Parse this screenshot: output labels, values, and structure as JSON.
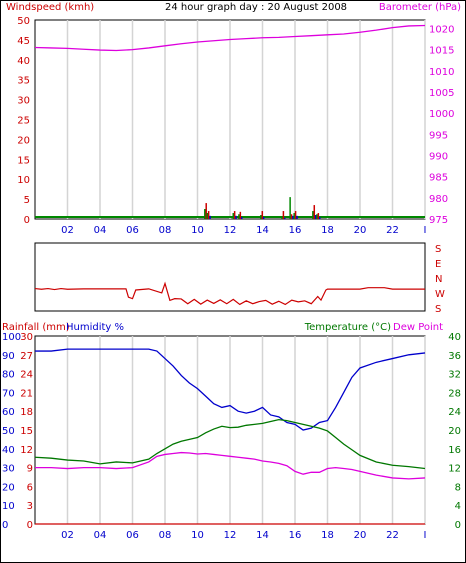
{
  "title": "24 hour graph day : 20 August 2008",
  "colors": {
    "windspeed": "#cc0000",
    "barometer": "#dd00dd",
    "gust": "#cc0000",
    "wind_green": "#008800",
    "wind_blue": "#0000cc",
    "direction": "#cc0000",
    "humidity": "#0000cc",
    "temperature": "#007700",
    "dewpoint": "#dd00dd",
    "rainfall": "#cc0000",
    "axis_red": "#cc0000",
    "axis_blue": "#0000cc",
    "axis_green": "#007700",
    "grid": "#d4d4d4"
  },
  "chart_data": [
    {
      "type": "line",
      "name": "wind_barometer",
      "labels": {
        "left": "Windspeed (kmh)",
        "right": "Barometer (hPa)"
      },
      "x_ticks": [
        "02",
        "04",
        "06",
        "08",
        "10",
        "12",
        "14",
        "16",
        "18",
        "20",
        "22",
        "I"
      ],
      "left_ticks": [
        "0",
        "5",
        "10",
        "15",
        "20",
        "25",
        "30",
        "35",
        "40",
        "45",
        "50"
      ],
      "right_ticks": [
        "975",
        "980",
        "985",
        "990",
        "995",
        "1000",
        "1005",
        "1010",
        "1015",
        "1020"
      ],
      "ylim_left": [
        0,
        50
      ],
      "ylim_right": [
        975,
        1022
      ],
      "grid": true,
      "series": [
        {
          "name": "Barometer (hPa)",
          "axis": "right",
          "x": [
            0,
            1,
            2,
            3,
            4,
            5,
            6,
            7,
            8,
            9,
            10,
            11,
            12,
            13,
            14,
            15,
            16,
            17,
            18,
            19,
            20,
            21,
            22,
            23,
            24
          ],
          "values": [
            1015.5,
            1015.4,
            1015.3,
            1015.1,
            1014.9,
            1014.8,
            1015.0,
            1015.4,
            1015.9,
            1016.4,
            1016.8,
            1017.1,
            1017.4,
            1017.6,
            1017.8,
            1017.9,
            1018.1,
            1018.3,
            1018.5,
            1018.7,
            1019.1,
            1019.6,
            1020.2,
            1020.6,
            1020.7
          ]
        }
      ],
      "wind_bars": [
        {
          "x": 10.45,
          "values": [
            2.5,
            4.0,
            1.5
          ]
        },
        {
          "x": 10.6,
          "values": [
            1.5,
            2.0,
            0.8
          ]
        },
        {
          "x": 12.2,
          "values": [
            1.5,
            2.0,
            0.8
          ]
        },
        {
          "x": 12.55,
          "values": [
            1.2,
            1.8,
            0.5
          ]
        },
        {
          "x": 13.9,
          "values": [
            1.0,
            2.0,
            0.5
          ]
        },
        {
          "x": 15.2,
          "values": [
            0.5,
            2.0,
            0.3
          ]
        },
        {
          "x": 15.7,
          "values": [
            5.5,
            1.2,
            0.8
          ]
        },
        {
          "x": 15.95,
          "values": [
            1.5,
            2.0,
            0.8
          ]
        },
        {
          "x": 17.1,
          "values": [
            2.0,
            3.5,
            1.0
          ]
        },
        {
          "x": 17.35,
          "values": [
            1.2,
            1.5,
            0.5
          ]
        }
      ]
    },
    {
      "type": "line",
      "name": "wind_direction",
      "right_labels": [
        "S",
        "E",
        "N",
        "W",
        "S"
      ],
      "ylim": [
        0,
        360
      ],
      "series": [
        {
          "name": "Direction",
          "x": [
            0,
            0.4,
            0.8,
            1.2,
            1.6,
            2.0,
            3.0,
            4.0,
            5.0,
            5.6,
            5.75,
            6.0,
            6.2,
            7.0,
            7.8,
            8.0,
            8.3,
            8.6,
            9.0,
            9.4,
            9.8,
            10.2,
            10.6,
            11.0,
            11.4,
            11.8,
            12.2,
            12.6,
            13.0,
            13.4,
            13.8,
            14.2,
            14.6,
            15.0,
            15.4,
            15.8,
            16.2,
            16.6,
            17.0,
            17.4,
            17.6,
            17.9,
            18.0,
            19.0,
            20.0,
            20.5,
            21.5,
            22.0,
            23.0,
            24.0
          ],
          "values": [
            100,
            95,
            100,
            93,
            100,
            95,
            98,
            98,
            98,
            98,
            40,
            30,
            90,
            98,
            70,
            135,
            18,
            30,
            28,
            -5,
            25,
            -8,
            20,
            -3,
            22,
            -5,
            25,
            -10,
            15,
            -5,
            10,
            18,
            -8,
            12,
            -10,
            20,
            8,
            15,
            -5,
            45,
            20,
            90,
            96,
            96,
            96,
            106,
            106,
            96,
            96,
            96
          ]
        }
      ]
    },
    {
      "type": "line",
      "name": "humidity_temperature",
      "labels": {
        "left": [
          "Rainfall (mm)",
          "Humidity %"
        ],
        "right": [
          "Temperature (°C)",
          "Dew Point"
        ]
      },
      "x_ticks": [
        "02",
        "04",
        "06",
        "08",
        "10",
        "12",
        "14",
        "16",
        "18",
        "20",
        "22",
        "I"
      ],
      "humidity_ticks": [
        "0",
        "10",
        "20",
        "30",
        "40",
        "50",
        "60",
        "70",
        "80",
        "90",
        "100"
      ],
      "rain_ticks": [
        "0",
        "3",
        "6",
        "9",
        "12",
        "15",
        "18",
        "21",
        "24",
        "27",
        "30"
      ],
      "temp_ticks": [
        "0",
        "4",
        "8",
        "12",
        "16",
        "20",
        "24",
        "28",
        "32",
        "36",
        "40"
      ],
      "ylim_humidity": [
        0,
        100
      ],
      "ylim_temp": [
        0,
        40
      ],
      "grid": true,
      "series": [
        {
          "name": "Humidity %",
          "axis": "humidity",
          "x": [
            0,
            1,
            2,
            3,
            4,
            5,
            6,
            7,
            7.5,
            8,
            8.5,
            9,
            9.5,
            10,
            10.5,
            11,
            11.5,
            12,
            12.5,
            13,
            13.5,
            14,
            14.5,
            15,
            15.5,
            16,
            16.5,
            17,
            17.5,
            18,
            18.5,
            19,
            19.5,
            20,
            21,
            22,
            23,
            24
          ],
          "values": [
            92,
            92,
            93,
            93,
            93,
            93,
            93,
            93,
            92,
            88,
            84,
            79,
            75,
            72,
            68,
            64,
            62,
            63,
            60,
            59,
            60,
            62,
            58,
            57,
            54,
            53,
            50,
            51,
            54,
            55,
            62,
            70,
            78,
            83,
            86,
            88,
            90,
            91
          ]
        },
        {
          "name": "Temperature (°C)",
          "axis": "temp",
          "x": [
            0,
            1,
            2,
            3,
            4,
            5,
            6,
            7,
            7.5,
            8,
            8.5,
            9,
            9.5,
            10,
            10.5,
            11,
            11.5,
            12,
            12.5,
            13,
            13.5,
            14,
            14.5,
            15,
            15.5,
            16,
            16.5,
            17,
            17.5,
            18,
            18.5,
            19,
            19.5,
            20,
            21,
            22,
            23,
            24
          ],
          "values": [
            14.2,
            14.0,
            13.6,
            13.4,
            12.8,
            13.2,
            13.0,
            13.8,
            15.0,
            16.0,
            17.0,
            17.6,
            18.0,
            18.4,
            19.4,
            20.2,
            20.8,
            20.5,
            20.6,
            21.0,
            21.2,
            21.4,
            21.8,
            22.2,
            22.0,
            21.6,
            21.2,
            20.8,
            20.4,
            19.8,
            18.4,
            17.0,
            15.8,
            14.6,
            13.2,
            12.5,
            12.2,
            11.8
          ]
        },
        {
          "name": "Dew Point",
          "axis": "temp",
          "x": [
            0,
            1,
            2,
            3,
            4,
            5,
            6,
            7,
            7.5,
            8,
            8.5,
            9,
            9.5,
            10,
            10.5,
            11,
            11.5,
            12,
            12.5,
            13,
            13.5,
            14,
            14.5,
            15,
            15.5,
            16,
            16.5,
            17,
            17.5,
            18,
            18.5,
            19,
            19.5,
            20,
            21,
            22,
            23,
            24
          ],
          "values": [
            12.0,
            12.0,
            11.8,
            12.0,
            12.0,
            11.8,
            12.0,
            13.2,
            14.4,
            14.8,
            15.0,
            15.2,
            15.1,
            14.9,
            15.0,
            14.8,
            14.6,
            14.4,
            14.2,
            14.0,
            13.8,
            13.4,
            13.2,
            12.9,
            12.4,
            11.2,
            10.6,
            11.0,
            11.0,
            11.8,
            12.0,
            11.8,
            11.6,
            11.2,
            10.4,
            9.8,
            9.6,
            9.8
          ]
        },
        {
          "name": "Rainfall (mm)",
          "axis": "rain",
          "x": [
            0,
            24
          ],
          "values": [
            0,
            0
          ]
        }
      ]
    }
  ]
}
